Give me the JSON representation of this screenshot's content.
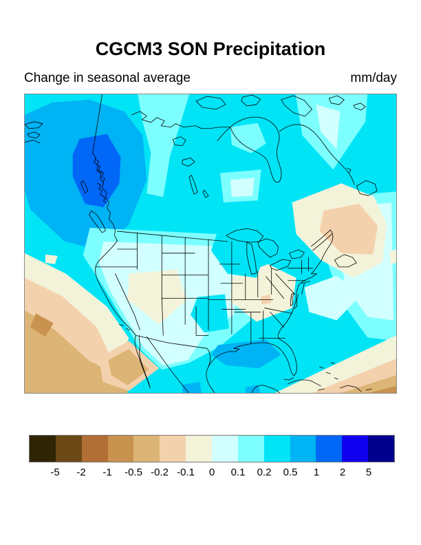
{
  "header": {
    "title": "CGCM3 SON Precipitation",
    "subtitle": "Change in seasonal average",
    "units": "mm/day"
  },
  "colorbar": {
    "labels": [
      "-5",
      "-2",
      "-1",
      "-0.5",
      "-0.2",
      "-0.1",
      "0",
      "0.1",
      "0.2",
      "0.5",
      "1",
      "2",
      "5"
    ],
    "colors": [
      "#2f2403",
      "#6b4a17",
      "#b16e35",
      "#c8924f",
      "#dcb475",
      "#f4d1ad",
      "#f3f3da",
      "#d2ffff",
      "#7dffff",
      "#00e4f6",
      "#00b3f4",
      "#0067f7",
      "#0f00f0",
      "#00008c"
    ]
  },
  "chart_data": {
    "type": "heatmap",
    "title": "CGCM3 SON Precipitation",
    "subtitle": "Change in seasonal average",
    "units": "mm/day",
    "region": "North America (Canada, United States, Mexico, Caribbean)",
    "legend_position": "bottom",
    "colorbar_levels": [
      -5,
      -2,
      -1,
      -0.5,
      -0.2,
      -0.1,
      0,
      0.1,
      0.2,
      0.5,
      1,
      2,
      5
    ],
    "colorbar_colors": [
      "#2f2403",
      "#6b4a17",
      "#b16e35",
      "#c8924f",
      "#dcb475",
      "#f4d1ad",
      "#f3f3da",
      "#d2ffff",
      "#7dffff",
      "#00e4f6",
      "#00b3f4",
      "#0067f7",
      "#0f00f0",
      "#00008c"
    ],
    "features": [
      {
        "area": "British Columbia coast core",
        "value_mm_day": "+1 to +2"
      },
      {
        "area": "Pacific Northwest / BC offshore ring",
        "value_mm_day": "+0.5 to +1"
      },
      {
        "area": "Most of Canada, Hudson Bay, oceans",
        "value_mm_day": "+0.2 to +0.5"
      },
      {
        "area": "Northern-central Canada patches",
        "value_mm_day": "+0.1 to +0.2"
      },
      {
        "area": "Central and southwestern U.S., interior Mexico",
        "value_mm_day": "0 to +0.1"
      },
      {
        "area": "Utah-Colorado patch",
        "value_mm_day": "-0.1 to 0"
      },
      {
        "area": "Tennessee-Carolinas-Georgia patch",
        "value_mm_day": "-0.1 to 0"
      },
      {
        "area": "Gulf of Mexico blob",
        "value_mm_day": "+0.5 to +1"
      },
      {
        "area": "Nova Scotia / Gulf of St. Lawrence",
        "value_mm_day": "-0.2 to -0.1"
      },
      {
        "area": "Subtropical Pacific off Baja California",
        "value_mm_day": "-0.5 to -0.2"
      },
      {
        "area": "Caribbean / subtropical Atlantic southeast corner",
        "value_mm_day": "-0.5 to -0.2"
      }
    ]
  }
}
